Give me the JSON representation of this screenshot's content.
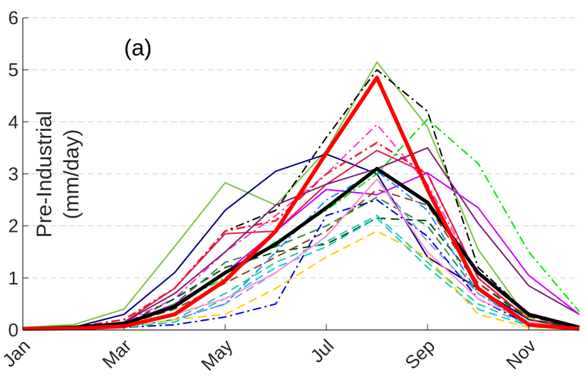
{
  "chart_data": {
    "type": "line",
    "panel_label": "(a)",
    "ylabel_lines": [
      "Pre-Industrial",
      "(mm/day)"
    ],
    "xlabel": "",
    "x": [
      1,
      2,
      3,
      4,
      5,
      6,
      7,
      8,
      9,
      10,
      11,
      12
    ],
    "xtick_values": [
      1,
      3,
      5,
      7,
      9,
      11
    ],
    "xtick_labels": [
      "Jan",
      "Mar",
      "May",
      "Jul",
      "Sep",
      "Nov"
    ],
    "yticks": [
      "0",
      "1",
      "2",
      "3",
      "4",
      "5",
      "6"
    ],
    "xlim": [
      1,
      12
    ],
    "ylim": [
      0,
      6
    ],
    "grid": "horizontal dashed",
    "series": [
      {
        "color": "#7fc241",
        "dash": "solid",
        "width": 2,
        "values": [
          0.05,
          0.1,
          0.4,
          1.6,
          2.83,
          2.4,
          3.45,
          5.15,
          3.9,
          1.55,
          0.2,
          0.05
        ]
      },
      {
        "color": "#000080",
        "dash": "solid",
        "width": 2,
        "values": [
          0.02,
          0.05,
          0.3,
          1.1,
          2.3,
          3.05,
          3.38,
          3.0,
          1.4,
          0.8,
          0.2,
          0.05
        ]
      },
      {
        "color": "#000000",
        "dash": "dashdot",
        "width": 2,
        "values": [
          0.02,
          0.05,
          0.2,
          0.8,
          1.9,
          2.3,
          3.7,
          5.0,
          4.2,
          1.2,
          0.3,
          0.05
        ]
      },
      {
        "color": "#ee1c25",
        "dash": "dashdot",
        "width": 2.5,
        "values": [
          0.02,
          0.05,
          0.2,
          0.8,
          1.9,
          2.1,
          3.0,
          3.6,
          3.0,
          1.0,
          0.2,
          0.02
        ]
      },
      {
        "color": "#ff33cc",
        "dash": "dashdot",
        "width": 2,
        "values": [
          0.02,
          0.05,
          0.15,
          0.6,
          1.5,
          2.2,
          3.0,
          3.95,
          2.8,
          1.0,
          0.2,
          0.02
        ]
      },
      {
        "color": "#e8174f",
        "dash": "solid",
        "width": 2,
        "values": [
          0.02,
          0.04,
          0.15,
          0.8,
          1.85,
          1.9,
          2.8,
          3.45,
          3.0,
          1.0,
          0.2,
          0.02
        ]
      },
      {
        "color": "#00e600",
        "dash": "dashdot",
        "width": 2,
        "values": [
          0.02,
          0.05,
          0.1,
          0.5,
          1.0,
          1.7,
          2.3,
          3.0,
          4.05,
          3.2,
          1.5,
          0.35
        ]
      },
      {
        "color": "#7b1f6e",
        "dash": "solid",
        "width": 2,
        "values": [
          0.02,
          0.05,
          0.15,
          0.7,
          1.5,
          2.4,
          2.8,
          3.1,
          3.5,
          2.05,
          0.85,
          0.3
        ]
      },
      {
        "color": "#cc00ff",
        "dash": "solid",
        "width": 2,
        "values": [
          0.02,
          0.05,
          0.12,
          0.5,
          1.1,
          1.9,
          2.7,
          2.6,
          3.02,
          2.35,
          1.05,
          0.3
        ]
      },
      {
        "color": "#004d00",
        "dash": "dashed",
        "width": 2,
        "values": [
          0.02,
          0.04,
          0.1,
          0.6,
          1.2,
          1.5,
          1.65,
          2.15,
          2.1,
          0.9,
          0.2,
          0.02
        ]
      },
      {
        "color": "#8b4513",
        "dash": "dashed",
        "width": 2,
        "values": [
          0.02,
          0.04,
          0.1,
          0.4,
          0.9,
          1.4,
          1.9,
          2.7,
          2.4,
          0.9,
          0.25,
          0.05
        ]
      },
      {
        "color": "#2e8b57",
        "dash": "dashed",
        "width": 2,
        "values": [
          0.02,
          0.03,
          0.1,
          0.5,
          1.3,
          1.6,
          2.0,
          2.55,
          2.0,
          0.7,
          0.15,
          0.02
        ]
      },
      {
        "color": "#1a8cff",
        "dash": "dashdot",
        "width": 2,
        "values": [
          0.02,
          0.03,
          0.05,
          0.2,
          0.5,
          1.5,
          2.5,
          3.05,
          2.3,
          0.7,
          0.1,
          0.02
        ]
      },
      {
        "color": "#0000cd",
        "dash": "dashdot",
        "width": 2,
        "values": [
          0.02,
          0.03,
          0.05,
          0.1,
          0.25,
          0.5,
          2.2,
          2.5,
          1.8,
          0.6,
          0.1,
          0.02
        ]
      },
      {
        "color": "#1fc7a7",
        "dash": "dashed",
        "width": 2,
        "values": [
          0.02,
          0.03,
          0.05,
          0.2,
          0.7,
          1.3,
          1.7,
          2.2,
          1.3,
          0.5,
          0.1,
          0.02
        ]
      },
      {
        "color": "#00ced1",
        "dash": "dashed",
        "width": 2,
        "values": [
          0.02,
          0.03,
          0.05,
          0.15,
          0.6,
          1.2,
          1.6,
          2.15,
          1.2,
          0.4,
          0.08,
          0.02
        ]
      },
      {
        "color": "#8a9ae0",
        "dash": "dashed",
        "width": 2,
        "values": [
          0.02,
          0.03,
          0.05,
          0.2,
          0.5,
          1.1,
          1.8,
          2.9,
          1.7,
          0.7,
          0.15,
          0.02
        ]
      },
      {
        "color": "#ffcc00",
        "dash": "dashed",
        "width": 2,
        "values": [
          0.02,
          0.03,
          0.05,
          0.2,
          0.3,
          0.8,
          1.4,
          1.9,
          1.4,
          0.3,
          0.05,
          0.02
        ]
      },
      {
        "color": "#ff8fd6",
        "dash": "solid",
        "width": 2,
        "values": [
          0.02,
          0.04,
          0.1,
          0.3,
          0.6,
          1.1,
          1.8,
          2.9,
          1.5,
          0.6,
          0.15,
          0.02
        ]
      },
      {
        "color": "#000000",
        "dash": "solid",
        "width": 5,
        "values": [
          0.02,
          0.05,
          0.12,
          0.45,
          1.1,
          1.65,
          2.35,
          3.1,
          2.45,
          1.1,
          0.3,
          0.05
        ]
      },
      {
        "color": "#ff0000",
        "dash": "solid",
        "width": 5.5,
        "values": [
          0.02,
          0.03,
          0.07,
          0.3,
          0.95,
          1.9,
          3.4,
          4.85,
          2.7,
          0.8,
          0.1,
          0.02
        ]
      }
    ]
  }
}
